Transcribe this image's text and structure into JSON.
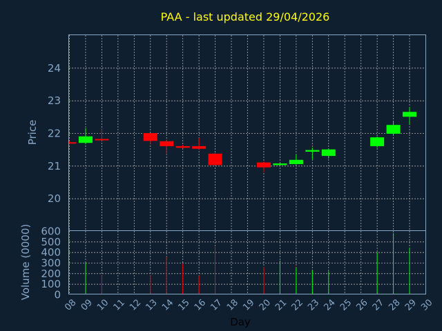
{
  "chart_data": [
    {
      "type": "candlestick",
      "title": "PAA - last updated 29/04/2026",
      "ylabel": "Price",
      "ylim": [
        19,
        25
      ],
      "yticks": [
        "20",
        "21",
        "22",
        "23",
        "24"
      ],
      "grid": true,
      "candles": [
        {
          "day": "08",
          "open": 21.72,
          "high": 21.76,
          "low": 21.68,
          "close": 21.7
        },
        {
          "day": "09",
          "open": 21.7,
          "high": 22.15,
          "low": 21.66,
          "close": 21.9
        },
        {
          "day": "10",
          "open": 21.82,
          "high": 22.15,
          "low": 21.77,
          "close": 21.78
        },
        {
          "day": "13",
          "open": 22.0,
          "high": 22.0,
          "low": 21.65,
          "close": 21.76
        },
        {
          "day": "14",
          "open": 21.75,
          "high": 21.8,
          "low": 21.35,
          "close": 21.6
        },
        {
          "day": "15",
          "open": 21.6,
          "high": 21.64,
          "low": 21.53,
          "close": 21.55
        },
        {
          "day": "16",
          "open": 21.6,
          "high": 21.85,
          "low": 21.5,
          "close": 21.52
        },
        {
          "day": "17",
          "open": 21.37,
          "high": 21.4,
          "low": 21.0,
          "close": 21.02
        },
        {
          "day": "20",
          "open": 21.1,
          "high": 21.13,
          "low": 20.8,
          "close": 20.95
        },
        {
          "day": "21",
          "open": 21.02,
          "high": 21.1,
          "low": 21.0,
          "close": 21.07
        },
        {
          "day": "22",
          "open": 21.05,
          "high": 21.35,
          "low": 21.03,
          "close": 21.18
        },
        {
          "day": "23",
          "open": 21.43,
          "high": 21.55,
          "low": 21.2,
          "close": 21.48
        },
        {
          "day": "24",
          "open": 21.3,
          "high": 21.52,
          "low": 21.22,
          "close": 21.5
        },
        {
          "day": "27",
          "open": 21.6,
          "high": 21.9,
          "low": 21.55,
          "close": 21.87
        },
        {
          "day": "28",
          "open": 21.98,
          "high": 22.35,
          "low": 21.95,
          "close": 22.25
        },
        {
          "day": "29",
          "open": 22.5,
          "high": 22.8,
          "low": 22.25,
          "close": 22.65
        }
      ]
    },
    {
      "type": "bar",
      "ylabel": "Volume (0000)",
      "xlabel": "Day",
      "ylim": [
        0,
        600
      ],
      "yticks": [
        "0",
        "100",
        "200",
        "300",
        "400",
        "500",
        "600"
      ],
      "xticks": [
        "08",
        "09",
        "10",
        "11",
        "12",
        "13",
        "14",
        "15",
        "16",
        "17",
        "18",
        "19",
        "20",
        "21",
        "22",
        "23",
        "24",
        "25",
        "26",
        "27",
        "28",
        "29",
        "30"
      ],
      "grid": true,
      "bars": [
        {
          "day": "09",
          "value": 300
        },
        {
          "day": "10",
          "value": 180
        },
        {
          "day": "13",
          "value": 180
        },
        {
          "day": "14",
          "value": 360
        },
        {
          "day": "15",
          "value": 290
        },
        {
          "day": "16",
          "value": 180
        },
        {
          "day": "17",
          "value": 450
        },
        {
          "day": "20",
          "value": 260
        },
        {
          "day": "21",
          "value": 320
        },
        {
          "day": "22",
          "value": 250
        },
        {
          "day": "23",
          "value": 230
        },
        {
          "day": "24",
          "value": 220
        },
        {
          "day": "27",
          "value": 400
        },
        {
          "day": "28",
          "value": 580
        },
        {
          "day": "29",
          "value": 440
        }
      ]
    }
  ],
  "colors": {
    "background": "#0f1f30",
    "title": "#ffff00",
    "text": "#87a7c7",
    "grid": "#b0b0b0",
    "up": "#00ff00",
    "down": "#ff0000"
  }
}
